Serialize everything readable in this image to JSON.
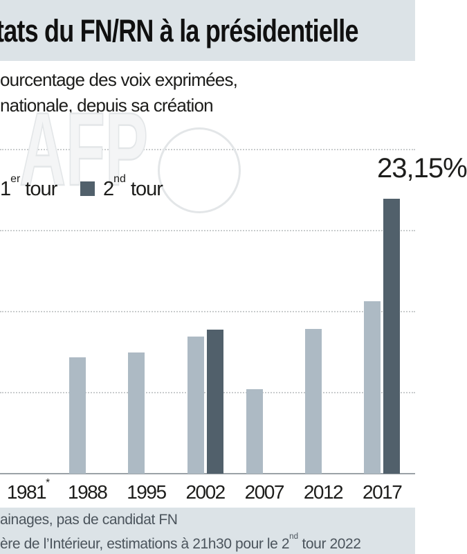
{
  "header": {
    "title": "tats du FN/RN à la présidentielle"
  },
  "subtitle": {
    "line1": "ourcentage des voix exprimées,",
    "line2": "nationale, depuis sa création"
  },
  "watermark": {
    "text": "AFP"
  },
  "legend": {
    "tour1": {
      "num": "1",
      "sup": "er",
      "rest": " tour"
    },
    "tour2": {
      "num": "2",
      "sup": "nd",
      "rest": " tour"
    }
  },
  "annotation": {
    "value_label": "23,15%"
  },
  "colors": {
    "band_bg": "#dce3e7",
    "tour1": "#adbac4",
    "tour2": "#51606b",
    "grid": "#c9cccd",
    "axis": "#9ba2a7",
    "text": "#1d1d1b",
    "footer_text": "#4b545c",
    "watermark": "#e3e6e8"
  },
  "chart_data": {
    "type": "bar",
    "categories": [
      "1981",
      "1988",
      "1995",
      "2002",
      "2007",
      "2012",
      "2017"
    ],
    "category_sups": [
      "*",
      "",
      "",
      "",
      "",
      "",
      ""
    ],
    "series": [
      {
        "name": "1er tour",
        "values": [
          null,
          14.4,
          15.0,
          16.9,
          10.4,
          17.9,
          21.3
        ]
      },
      {
        "name": "2nd tour",
        "values": [
          null,
          null,
          null,
          17.8,
          null,
          null,
          33.9
        ]
      }
    ],
    "unit": "%",
    "ylim": [
      0,
      40
    ],
    "gridlines_pct": [
      10,
      20,
      30,
      40
    ],
    "grid": true,
    "legend_position": "top-left",
    "annotation_label": "23,15%"
  },
  "footer": {
    "line1": "ainages, pas de candidat FN",
    "line2_pre": "ère de l’Intérieur, estimations à 21h30 pour le 2",
    "line2_sup": "nd",
    "line2_post": " tour 2022"
  }
}
